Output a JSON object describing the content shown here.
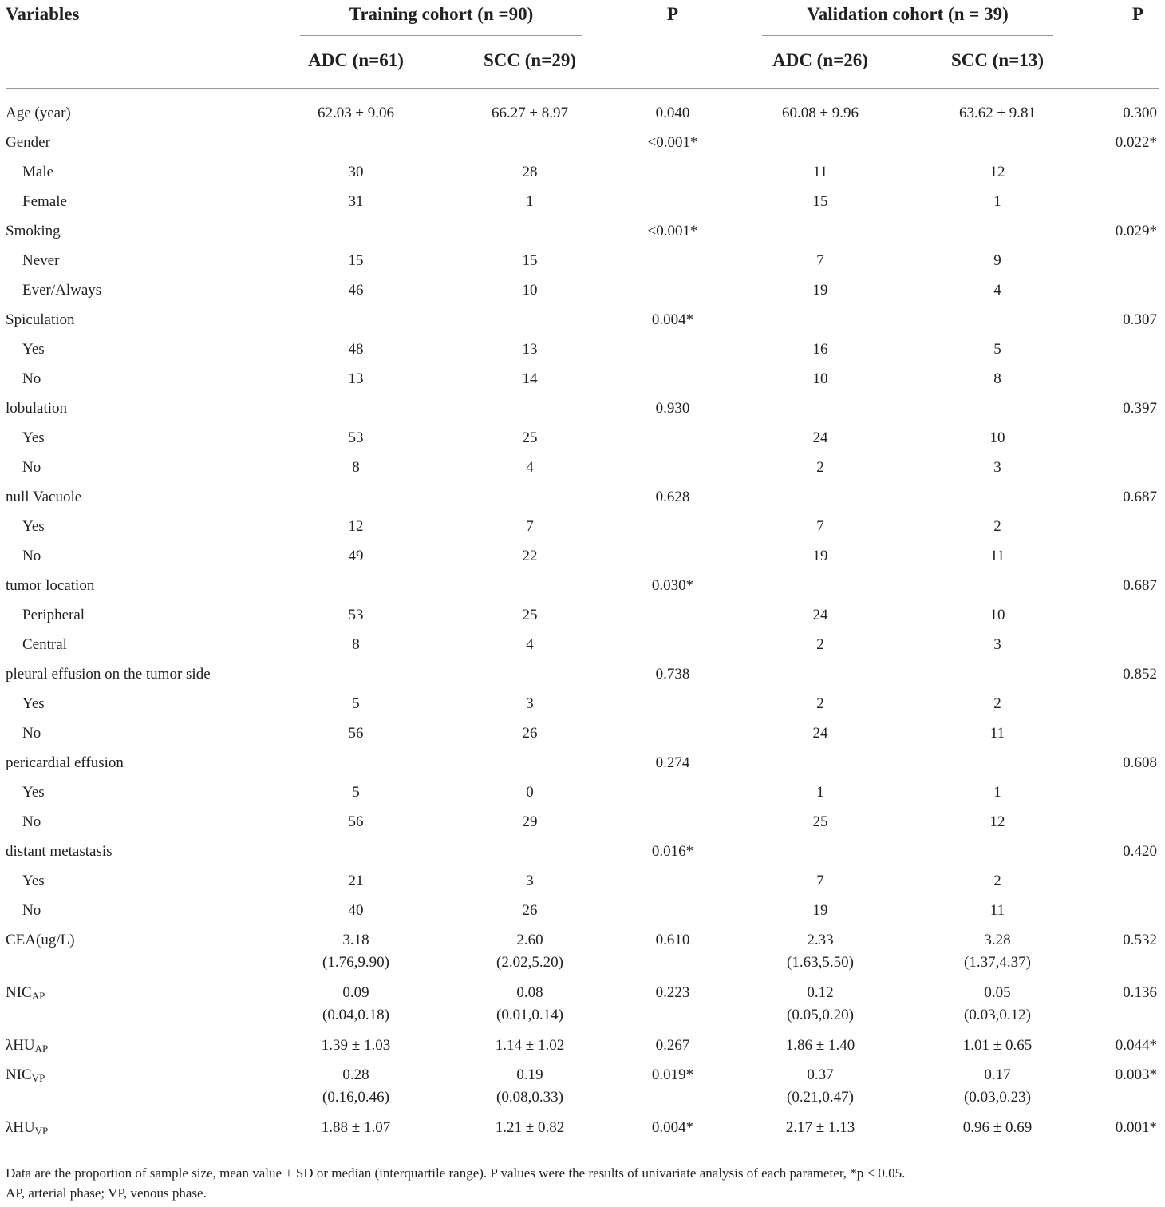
{
  "header": {
    "variables": "Variables",
    "training_cohort": "Training cohort (n =90)",
    "p1": "P",
    "validation_cohort": "Validation cohort (n = 39)",
    "p2": "P",
    "train_adc": "ADC (n=61)",
    "train_scc": "SCC (n=29)",
    "val_adc": "ADC (n=26)",
    "val_scc": "SCC (n=13)"
  },
  "rows": [
    {
      "label": "Age (year)",
      "sub": false,
      "cells": [
        "62.03 ± 9.06",
        "66.27 ± 8.97",
        "0.040",
        "60.08 ± 9.96",
        "63.62 ± 9.81",
        "0.300"
      ]
    },
    {
      "label": "Gender",
      "sub": false,
      "cells": [
        "",
        "",
        "<0.001*",
        "",
        "",
        "0.022*"
      ]
    },
    {
      "label": "Male",
      "sub": true,
      "cells": [
        "30",
        "28",
        "",
        "11",
        "12",
        ""
      ]
    },
    {
      "label": "Female",
      "sub": true,
      "cells": [
        "31",
        "1",
        "",
        "15",
        "1",
        ""
      ]
    },
    {
      "label": "Smoking",
      "sub": false,
      "cells": [
        "",
        "",
        "<0.001*",
        "",
        "",
        "0.029*"
      ]
    },
    {
      "label": "Never",
      "sub": true,
      "cells": [
        "15",
        "15",
        "",
        "7",
        "9",
        ""
      ]
    },
    {
      "label": "Ever/Always",
      "sub": true,
      "cells": [
        "46",
        "10",
        "",
        "19",
        "4",
        ""
      ]
    },
    {
      "label": "Spiculation",
      "sub": false,
      "cells": [
        "",
        "",
        "0.004*",
        "",
        "",
        "0.307"
      ]
    },
    {
      "label": "Yes",
      "sub": true,
      "cells": [
        "48",
        "13",
        "",
        "16",
        "5",
        ""
      ]
    },
    {
      "label": "No",
      "sub": true,
      "cells": [
        "13",
        "14",
        "",
        "10",
        "8",
        ""
      ]
    },
    {
      "label": "lobulation",
      "sub": false,
      "cells": [
        "",
        "",
        "0.930",
        "",
        "",
        "0.397"
      ]
    },
    {
      "label": "Yes",
      "sub": true,
      "cells": [
        "53",
        "25",
        "",
        "24",
        "10",
        ""
      ]
    },
    {
      "label": "No",
      "sub": true,
      "cells": [
        "8",
        "4",
        "",
        "2",
        "3",
        ""
      ]
    },
    {
      "label": "null Vacuole",
      "sub": false,
      "cells": [
        "",
        "",
        "0.628",
        "",
        "",
        "0.687"
      ]
    },
    {
      "label": "Yes",
      "sub": true,
      "cells": [
        "12",
        "7",
        "",
        "7",
        "2",
        ""
      ]
    },
    {
      "label": "No",
      "sub": true,
      "cells": [
        "49",
        "22",
        "",
        "19",
        "11",
        ""
      ]
    },
    {
      "label": "tumor location",
      "sub": false,
      "cells": [
        "",
        "",
        "0.030*",
        "",
        "",
        "0.687"
      ]
    },
    {
      "label": "Peripheral",
      "sub": true,
      "cells": [
        "53",
        "25",
        "",
        "24",
        "10",
        ""
      ]
    },
    {
      "label": "Central",
      "sub": true,
      "cells": [
        "8",
        "4",
        "",
        "2",
        "3",
        ""
      ]
    },
    {
      "label": "pleural effusion on the tumor side",
      "sub": false,
      "cells": [
        "",
        "",
        "0.738",
        "",
        "",
        "0.852"
      ]
    },
    {
      "label": "Yes",
      "sub": true,
      "cells": [
        "5",
        "3",
        "",
        "2",
        "2",
        ""
      ]
    },
    {
      "label": "No",
      "sub": true,
      "cells": [
        "56",
        "26",
        "",
        "24",
        "11",
        ""
      ]
    },
    {
      "label": "pericardial effusion",
      "sub": false,
      "cells": [
        "",
        "",
        "0.274",
        "",
        "",
        "0.608"
      ]
    },
    {
      "label": "Yes",
      "sub": true,
      "cells": [
        "5",
        "0",
        "",
        "1",
        "1",
        ""
      ]
    },
    {
      "label": "No",
      "sub": true,
      "cells": [
        "56",
        "29",
        "",
        "25",
        "12",
        ""
      ]
    },
    {
      "label": "distant metastasis",
      "sub": false,
      "cells": [
        "",
        "",
        "0.016*",
        "",
        "",
        "0.420"
      ]
    },
    {
      "label": "Yes",
      "sub": true,
      "cells": [
        "21",
        "3",
        "",
        "7",
        "2",
        ""
      ]
    },
    {
      "label": "No",
      "sub": true,
      "cells": [
        "40",
        "26",
        "",
        "19",
        "11",
        ""
      ]
    },
    {
      "label": "CEA(ug/L)",
      "sub": false,
      "double": true,
      "cells": [
        "3.18",
        "2.60",
        "0.610",
        "2.33",
        "3.28",
        "0.532"
      ],
      "cells2": [
        "(1.76,9.90)",
        "(2.02,5.20)",
        "",
        "(1.63,5.50)",
        "(1.37,4.37)",
        ""
      ]
    },
    {
      "label": "NIC",
      "label_sub": "AP",
      "sub": false,
      "double": true,
      "cells": [
        "0.09",
        "0.08",
        "0.223",
        "0.12",
        "0.05",
        "0.136"
      ],
      "cells2": [
        "(0.04,0.18)",
        "(0.01,0.14)",
        "",
        "(0.05,0.20)",
        "(0.03,0.12)",
        ""
      ]
    },
    {
      "label": "λHU",
      "label_sub": "AP",
      "sub": false,
      "cells": [
        "1.39 ± 1.03",
        "1.14 ± 1.02",
        "0.267",
        "1.86 ± 1.40",
        "1.01 ± 0.65",
        "0.044*"
      ]
    },
    {
      "label": "NIC",
      "label_sub": "VP",
      "sub": false,
      "double": true,
      "cells": [
        "0.28",
        "0.19",
        "0.019*",
        "0.37",
        "0.17",
        "0.003*"
      ],
      "cells2": [
        "(0.16,0.46)",
        "(0.08,0.33)",
        "",
        "(0.21,0.47)",
        "(0.03,0.23)",
        ""
      ]
    },
    {
      "label": "λHU",
      "label_sub": "VP",
      "sub": false,
      "cells": [
        "1.88 ± 1.07",
        "1.21 ± 0.82",
        "0.004*",
        "2.17 ± 1.13",
        "0.96 ± 0.69",
        "0.001*"
      ]
    }
  ],
  "footnote": {
    "line1": "Data are the proportion of sample size, mean value ± SD or median (interquartile range). P values were the results of univariate analysis of each parameter, *p < 0.05.",
    "line2": "AP, arterial phase; VP, venous phase."
  }
}
